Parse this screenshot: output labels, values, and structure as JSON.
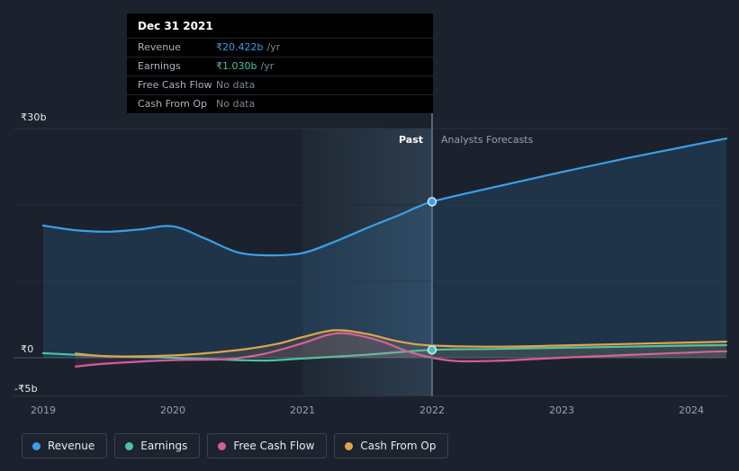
{
  "page": {
    "background": "#1b222d"
  },
  "tooltip": {
    "title": "Dec 31 2021",
    "rows": [
      {
        "label": "Revenue",
        "value": "₹20.422b",
        "unit": "/yr",
        "value_color": "#3aa1e8"
      },
      {
        "label": "Earnings",
        "value": "₹1.030b",
        "unit": "/yr",
        "value_color": "#4cc2a8"
      },
      {
        "label": "Free Cash Flow",
        "value": "No data",
        "unit": "",
        "value_color": "#7e8795"
      },
      {
        "label": "Cash From Op",
        "value": "No data",
        "unit": "",
        "value_color": "#7e8795"
      }
    ]
  },
  "axes": {
    "y_top_label": "₹30b",
    "y_zero_label": "₹0",
    "y_bottom_label": "-₹5b",
    "x_labels": [
      "2019",
      "2020",
      "2021",
      "2022",
      "2023",
      "2024"
    ]
  },
  "dividers": {
    "past_label": "Past",
    "forecast_label": "Analysts Forecasts"
  },
  "legend": [
    {
      "label": "Revenue"
    },
    {
      "label": "Earnings"
    },
    {
      "label": "Free Cash Flow"
    },
    {
      "label": "Cash From Op"
    }
  ],
  "chart_data": {
    "type": "line",
    "x_axis": {
      "ticks": [
        2019,
        2020,
        2021,
        2022,
        2023,
        2024
      ],
      "range": [
        2019,
        2024.27
      ]
    },
    "y_axis": {
      "unit": "₹ billions",
      "labeled_ticks": [
        30,
        0,
        -5
      ],
      "range": [
        -5,
        30
      ]
    },
    "past_forecast_divider_x": 2022,
    "highlight_band_x": [
      2021,
      2022
    ],
    "series": [
      {
        "name": "Revenue",
        "color": "#3aa1e8",
        "x": [
          2019,
          2019.25,
          2019.5,
          2019.75,
          2020,
          2020.25,
          2020.5,
          2020.75,
          2021,
          2021.25,
          2021.5,
          2021.75,
          2022,
          2022.5,
          2023,
          2023.5,
          2024,
          2024.27
        ],
        "y": [
          17.3,
          16.7,
          16.5,
          16.8,
          17.2,
          15.6,
          13.8,
          13.4,
          13.7,
          15.2,
          17.0,
          18.7,
          20.422,
          22.4,
          24.3,
          26.1,
          27.8,
          28.7
        ],
        "marker": {
          "x": 2022,
          "y": 20.422
        }
      },
      {
        "name": "Earnings",
        "color": "#4cc2a8",
        "x": [
          2019,
          2019.5,
          2020,
          2020.5,
          2020.75,
          2021,
          2021.5,
          2022,
          2022.5,
          2023,
          2023.5,
          2024,
          2024.27
        ],
        "y": [
          0.6,
          0.2,
          0.0,
          -0.3,
          -0.35,
          -0.1,
          0.4,
          1.03,
          1.15,
          1.3,
          1.45,
          1.6,
          1.65
        ],
        "marker": {
          "x": 2022,
          "y": 1.03
        }
      },
      {
        "name": "Free Cash Flow",
        "color": "#d45c9e",
        "x": [
          2019.25,
          2019.5,
          2020,
          2020.4,
          2020.7,
          2021,
          2021.2,
          2021.35,
          2021.6,
          2021.8,
          2022,
          2022.2,
          2022.5,
          2023,
          2023.5,
          2024,
          2024.27
        ],
        "y": [
          -1.15,
          -0.75,
          -0.3,
          -0.2,
          0.5,
          1.9,
          3.0,
          3.15,
          2.2,
          0.9,
          0.0,
          -0.45,
          -0.4,
          0.0,
          0.35,
          0.7,
          0.85
        ]
      },
      {
        "name": "Cash From Op",
        "color": "#e0a44c",
        "x": [
          2019.25,
          2019.5,
          2020,
          2020.5,
          2020.8,
          2021,
          2021.25,
          2021.5,
          2021.75,
          2022,
          2022.5,
          2023,
          2023.5,
          2024,
          2024.27
        ],
        "y": [
          0.55,
          0.2,
          0.3,
          1.0,
          1.8,
          2.7,
          3.6,
          3.1,
          2.1,
          1.6,
          1.45,
          1.6,
          1.8,
          2.0,
          2.1
        ]
      }
    ]
  }
}
